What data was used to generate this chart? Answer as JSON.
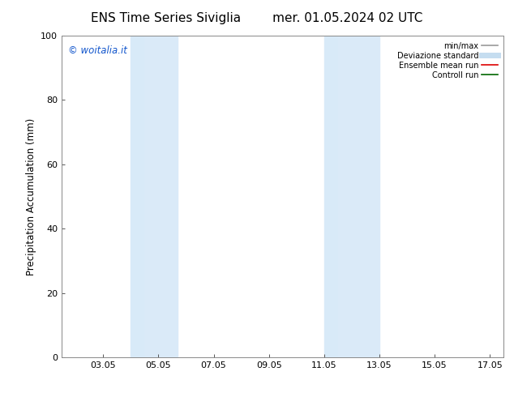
{
  "title_left": "ENS Time Series Siviglia",
  "title_right": "mer. 01.05.2024 02 UTC",
  "ylabel": "Precipitation Accumulation (mm)",
  "ylim": [
    0,
    100
  ],
  "yticks": [
    0,
    20,
    40,
    60,
    80,
    100
  ],
  "xtick_labels": [
    "03.05",
    "05.05",
    "07.05",
    "09.05",
    "11.05",
    "13.05",
    "15.05",
    "17.05"
  ],
  "xtick_positions": [
    3,
    5,
    7,
    9,
    11,
    13,
    15,
    17
  ],
  "xlim": [
    1.5,
    17.5
  ],
  "shaded_regions": [
    {
      "xmin": 4.0,
      "xmax": 4.5,
      "color": "#d8eaf8"
    },
    {
      "xmin": 4.5,
      "xmax": 5.7,
      "color": "#daeaf8"
    },
    {
      "xmin": 11.0,
      "xmax": 11.5,
      "color": "#d8eaf8"
    },
    {
      "xmin": 11.5,
      "xmax": 13.0,
      "color": "#daeaf8"
    }
  ],
  "watermark_text": "© woitalia.it",
  "watermark_color": "#1155cc",
  "legend_entries": [
    {
      "label": "min/max",
      "color": "#999999",
      "lw": 1.2
    },
    {
      "label": "Deviazione standard",
      "color": "#c5ddf0",
      "lw": 5
    },
    {
      "label": "Ensemble mean run",
      "color": "#dd0000",
      "lw": 1.2
    },
    {
      "label": "Controll run",
      "color": "#006600",
      "lw": 1.2
    }
  ],
  "bg_color": "#ffffff",
  "title_fontsize": 11,
  "label_fontsize": 8.5,
  "tick_fontsize": 8,
  "watermark_fontsize": 8.5
}
